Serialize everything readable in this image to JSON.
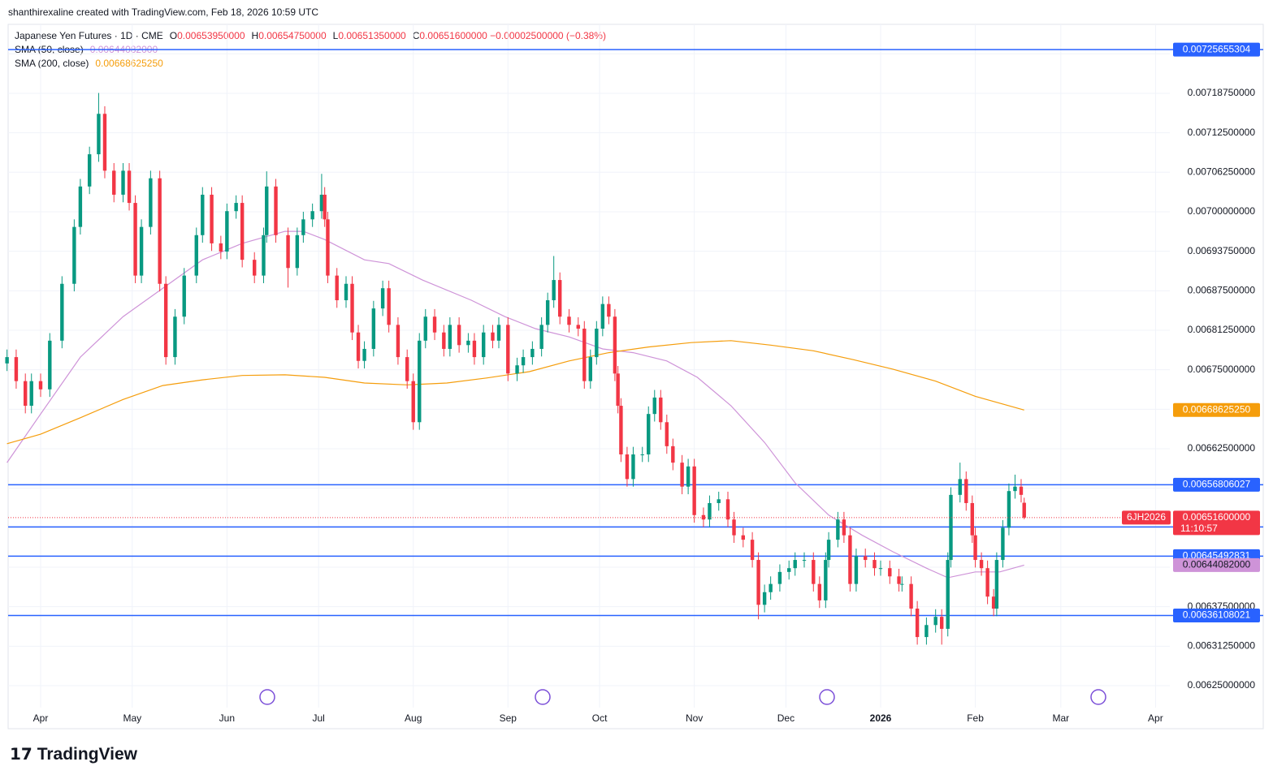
{
  "header": "shanthirexaline created with TradingView.com, Feb 18, 2026 10:59 UTC",
  "footer": "TradingView",
  "chart_data": {
    "type": "candlestick",
    "legend": {
      "title": "Japanese Yen Futures · 1D · CME",
      "items": [
        {
          "key": "O",
          "value": "0.00653950000"
        },
        {
          "key": "H",
          "value": "0.00654750000"
        },
        {
          "key": "L",
          "value": "0.00651350000"
        },
        {
          "key": "C",
          "value": "0.00651600000"
        }
      ],
      "change": "−0.00002500000 (−0.38%)"
    },
    "up_color": "#089981",
    "down_color": "#f23645",
    "xlim": [
      -10.64,
      369.68
    ],
    "ylim": [
      0.0062115,
      0.0072966
    ],
    "xticks": [
      {
        "value": 0,
        "label": "Apr"
      },
      {
        "value": 30,
        "label": "May"
      },
      {
        "value": 61,
        "label": "Jun"
      },
      {
        "value": 91,
        "label": "Jul"
      },
      {
        "value": 122,
        "label": "Aug"
      },
      {
        "value": 153,
        "label": "Sep"
      },
      {
        "value": 183,
        "label": "Oct"
      },
      {
        "value": 214,
        "label": "Nov"
      },
      {
        "value": 244,
        "label": "Dec"
      },
      {
        "value": 275,
        "label": "2026"
      },
      {
        "value": 306,
        "label": "Feb"
      },
      {
        "value": 334,
        "label": "Mar"
      },
      {
        "value": 365,
        "label": "Apr"
      }
    ],
    "yticks": [
      {
        "value": 0.00625,
        "label": "0.00625000000"
      },
      {
        "value": 0.0063125,
        "label": "0.00631250000"
      },
      {
        "value": 0.006375,
        "label": "0.00637500000"
      },
      {
        "value": 0.0064375,
        "label": "0.00643750000"
      },
      {
        "value": 0.0065,
        "label": "0.00650000000"
      },
      {
        "value": 0.0065625,
        "label": "0.00656250000"
      },
      {
        "value": 0.006625,
        "label": "0.00662500000"
      },
      {
        "value": 0.0066875,
        "label": "0.00668750000"
      },
      {
        "value": 0.00675,
        "label": "0.00675000000"
      },
      {
        "value": 0.0068125,
        "label": "0.00681250000"
      },
      {
        "value": 0.006875,
        "label": "0.00687500000"
      },
      {
        "value": 0.0069375,
        "label": "0.00693750000"
      },
      {
        "value": 0.007,
        "label": "0.00700000000"
      },
      {
        "value": 0.0070625,
        "label": "0.00706250000"
      },
      {
        "value": 0.007125,
        "label": "0.00712500000"
      },
      {
        "value": 0.0071875,
        "label": "0.00718750000"
      },
      {
        "value": 0.00725,
        "label": "0.00725000000"
      }
    ],
    "grid": true,
    "candles": [
      [
        -11,
        0.00676,
        0.006782,
        0.006748,
        0.00677
      ],
      [
        -8,
        0.00677,
        0.006782,
        0.00672,
        0.006732
      ],
      [
        -5,
        0.006732,
        0.006744,
        0.006681,
        0.006693
      ],
      [
        -3,
        0.006693,
        0.006744,
        0.006681,
        0.006732
      ],
      [
        0,
        0.006732,
        0.006744,
        0.006707,
        0.006719
      ],
      [
        3,
        0.006719,
        0.006808,
        0.006707,
        0.006796
      ],
      [
        7,
        0.006796,
        0.006898,
        0.006784,
        0.006886
      ],
      [
        11,
        0.006886,
        0.006988,
        0.006874,
        0.006976
      ],
      [
        13,
        0.006976,
        0.007052,
        0.006964,
        0.00704
      ],
      [
        16,
        0.00704,
        0.007103,
        0.007028,
        0.007091
      ],
      [
        19,
        0.007091,
        0.007188,
        0.007079,
        0.007155
      ],
      [
        21,
        0.007155,
        0.007167,
        0.007053,
        0.007065
      ],
      [
        24,
        0.007065,
        0.007077,
        0.007015,
        0.007027
      ],
      [
        27,
        0.007027,
        0.007077,
        0.007015,
        0.007065
      ],
      [
        29,
        0.007065,
        0.007077,
        0.007002,
        0.007014
      ],
      [
        31,
        0.007014,
        0.007026,
        0.006887,
        0.006899
      ],
      [
        33,
        0.006899,
        0.006988,
        0.006887,
        0.006976
      ],
      [
        36,
        0.006976,
        0.007065,
        0.006964,
        0.007053
      ],
      [
        39,
        0.007053,
        0.007065,
        0.006874,
        0.006886
      ],
      [
        41,
        0.006886,
        0.006898,
        0.006758,
        0.00677
      ],
      [
        44,
        0.00677,
        0.006846,
        0.006758,
        0.006834
      ],
      [
        47,
        0.006834,
        0.006911,
        0.006822,
        0.006899
      ],
      [
        51,
        0.006899,
        0.006975,
        0.006887,
        0.006963
      ],
      [
        53,
        0.006963,
        0.007039,
        0.006951,
        0.007027
      ],
      [
        56,
        0.007027,
        0.007039,
        0.006938,
        0.00695
      ],
      [
        59,
        0.00695,
        0.006962,
        0.006925,
        0.006937
      ],
      [
        61,
        0.006937,
        0.007013,
        0.006925,
        0.007001
      ],
      [
        64,
        0.007001,
        0.007026,
        0.006989,
        0.007014
      ],
      [
        66,
        0.007014,
        0.007026,
        0.006912,
        0.006924
      ],
      [
        70,
        0.006924,
        0.006936,
        0.006887,
        0.006899
      ],
      [
        73,
        0.006899,
        0.006975,
        0.006887,
        0.006963
      ],
      [
        74,
        0.006963,
        0.007064,
        0.006951,
        0.00704
      ],
      [
        77,
        0.00704,
        0.007052,
        0.006951,
        0.006963
      ],
      [
        81,
        0.006963,
        0.006975,
        0.00688,
        0.006911
      ],
      [
        84,
        0.006911,
        0.006975,
        0.006899,
        0.006963
      ],
      [
        86,
        0.006963,
        0.007,
        0.006951,
        0.006988
      ],
      [
        89,
        0.006988,
        0.007013,
        0.006976,
        0.007001
      ],
      [
        92,
        0.007001,
        0.00706,
        0.006989,
        0.007027
      ],
      [
        93,
        0.007027,
        0.007039,
        0.006976,
        0.006988
      ],
      [
        94,
        0.006988,
        0.007,
        0.006887,
        0.006899
      ],
      [
        97,
        0.006899,
        0.006911,
        0.006848,
        0.00686
      ],
      [
        100,
        0.00686,
        0.006898,
        0.006848,
        0.006886
      ],
      [
        102,
        0.006886,
        0.006898,
        0.006797,
        0.006809
      ],
      [
        104,
        0.006809,
        0.006821,
        0.006752,
        0.006764
      ],
      [
        106,
        0.006764,
        0.006795,
        0.006752,
        0.006783
      ],
      [
        109,
        0.006783,
        0.006859,
        0.006771,
        0.006847
      ],
      [
        112,
        0.006847,
        0.006891,
        0.006835,
        0.006879
      ],
      [
        114,
        0.006879,
        0.006891,
        0.006809,
        0.006821
      ],
      [
        117,
        0.006821,
        0.006833,
        0.006758,
        0.00677
      ],
      [
        120,
        0.00677,
        0.006782,
        0.00672,
        0.006732
      ],
      [
        122,
        0.006732,
        0.006744,
        0.006655,
        0.006667
      ],
      [
        124,
        0.006667,
        0.006808,
        0.006655,
        0.006796
      ],
      [
        126,
        0.006796,
        0.006846,
        0.006784,
        0.006834
      ],
      [
        129,
        0.006834,
        0.006846,
        0.006797,
        0.006809
      ],
      [
        132,
        0.006809,
        0.006821,
        0.006771,
        0.006783
      ],
      [
        134,
        0.006783,
        0.006833,
        0.006771,
        0.006821
      ],
      [
        137,
        0.006821,
        0.006833,
        0.006777,
        0.006789
      ],
      [
        140,
        0.006789,
        0.006808,
        0.006777,
        0.006796
      ],
      [
        142,
        0.006796,
        0.006808,
        0.006758,
        0.00677
      ],
      [
        145,
        0.00677,
        0.006821,
        0.006758,
        0.006809
      ],
      [
        148,
        0.006809,
        0.006821,
        0.006784,
        0.006796
      ],
      [
        150,
        0.006796,
        0.006833,
        0.006784,
        0.006821
      ],
      [
        153,
        0.006821,
        0.006833,
        0.006732,
        0.006744
      ],
      [
        156,
        0.006744,
        0.006769,
        0.006732,
        0.006757
      ],
      [
        158,
        0.006757,
        0.006782,
        0.006745,
        0.00677
      ],
      [
        161,
        0.00677,
        0.006795,
        0.006758,
        0.006783
      ],
      [
        164,
        0.006783,
        0.006833,
        0.006771,
        0.006821
      ],
      [
        166,
        0.006821,
        0.006872,
        0.006809,
        0.00686
      ],
      [
        168,
        0.00686,
        0.00693,
        0.006848,
        0.006892
      ],
      [
        170,
        0.006892,
        0.006904,
        0.006822,
        0.006834
      ],
      [
        173,
        0.006834,
        0.006846,
        0.006809,
        0.006821
      ],
      [
        176,
        0.006821,
        0.006833,
        0.006803,
        0.006815
      ],
      [
        178,
        0.006815,
        0.006827,
        0.00672,
        0.006732
      ],
      [
        180,
        0.006732,
        0.006782,
        0.00672,
        0.00677
      ],
      [
        182,
        0.00677,
        0.006827,
        0.006758,
        0.006815
      ],
      [
        184,
        0.006815,
        0.006866,
        0.006803,
        0.006854
      ],
      [
        186,
        0.006854,
        0.006866,
        0.006822,
        0.006834
      ],
      [
        188,
        0.006834,
        0.006846,
        0.006732,
        0.006744
      ],
      [
        189,
        0.006744,
        0.006756,
        0.006681,
        0.006693
      ],
      [
        190,
        0.006693,
        0.006705,
        0.006604,
        0.006616
      ],
      [
        192,
        0.006616,
        0.006628,
        0.006565,
        0.006577
      ],
      [
        194,
        0.006577,
        0.006628,
        0.006565,
        0.006616
      ],
      [
        197,
        0.006616,
        0.006628,
        0.006604,
        0.006616
      ],
      [
        199,
        0.006616,
        0.006692,
        0.006604,
        0.00668
      ],
      [
        201,
        0.00668,
        0.006718,
        0.006668,
        0.006706
      ],
      [
        203,
        0.006706,
        0.006718,
        0.006655,
        0.006667
      ],
      [
        205,
        0.006667,
        0.006679,
        0.006617,
        0.006629
      ],
      [
        207,
        0.006629,
        0.006641,
        0.006591,
        0.006603
      ],
      [
        210,
        0.006603,
        0.006615,
        0.006553,
        0.006565
      ],
      [
        212,
        0.006565,
        0.006609,
        0.006553,
        0.006597
      ],
      [
        214,
        0.006597,
        0.006609,
        0.006508,
        0.00652
      ],
      [
        217,
        0.00652,
        0.006532,
        0.006501,
        0.006513
      ],
      [
        219,
        0.006513,
        0.006551,
        0.006501,
        0.006539
      ],
      [
        222,
        0.006539,
        0.006557,
        0.006527,
        0.006545
      ],
      [
        225,
        0.006545,
        0.006557,
        0.006501,
        0.006513
      ],
      [
        227,
        0.006513,
        0.006525,
        0.006476,
        0.006488
      ],
      [
        230,
        0.006488,
        0.0065,
        0.006469,
        0.006481
      ],
      [
        233,
        0.006481,
        0.006493,
        0.006437,
        0.006449
      ],
      [
        235,
        0.006449,
        0.006461,
        0.006355,
        0.006378
      ],
      [
        237,
        0.006378,
        0.00641,
        0.006366,
        0.006398
      ],
      [
        239,
        0.006398,
        0.006423,
        0.006386,
        0.006411
      ],
      [
        242,
        0.006411,
        0.006442,
        0.006399,
        0.00643
      ],
      [
        245,
        0.00643,
        0.006448,
        0.006418,
        0.006436
      ],
      [
        247,
        0.006436,
        0.006461,
        0.006424,
        0.006449
      ],
      [
        250,
        0.006449,
        0.006461,
        0.006437,
        0.006449
      ],
      [
        253,
        0.006449,
        0.006461,
        0.006399,
        0.006411
      ],
      [
        255,
        0.006411,
        0.006423,
        0.006373,
        0.006385
      ],
      [
        257,
        0.006385,
        0.006461,
        0.006373,
        0.006449
      ],
      [
        258,
        0.006449,
        0.006493,
        0.006437,
        0.006481
      ],
      [
        261,
        0.006481,
        0.006525,
        0.006469,
        0.006513
      ],
      [
        263,
        0.006513,
        0.006525,
        0.006476,
        0.006488
      ],
      [
        265,
        0.006488,
        0.0065,
        0.006399,
        0.006411
      ],
      [
        267,
        0.006411,
        0.006467,
        0.006399,
        0.006455
      ],
      [
        270,
        0.006455,
        0.006467,
        0.006437,
        0.006449
      ],
      [
        273,
        0.006449,
        0.006461,
        0.006424,
        0.006436
      ],
      [
        275,
        0.006436,
        0.006448,
        0.006424,
        0.006436
      ],
      [
        278,
        0.006436,
        0.006448,
        0.006411,
        0.006423
      ],
      [
        281,
        0.006423,
        0.006435,
        0.006399,
        0.006411
      ],
      [
        282,
        0.006411,
        0.006423,
        0.006399,
        0.006411
      ],
      [
        285,
        0.006411,
        0.006423,
        0.00636,
        0.006372
      ],
      [
        287,
        0.006372,
        0.006384,
        0.006315,
        0.006327
      ],
      [
        290,
        0.006327,
        0.006358,
        0.006315,
        0.006346
      ],
      [
        293,
        0.006346,
        0.006371,
        0.006334,
        0.006359
      ],
      [
        295,
        0.006359,
        0.006371,
        0.006315,
        0.00634
      ],
      [
        297,
        0.00634,
        0.006461,
        0.006328,
        0.006449
      ],
      [
        298,
        0.006449,
        0.006564,
        0.006437,
        0.006552
      ],
      [
        301,
        0.006552,
        0.006603,
        0.00654,
        0.006577
      ],
      [
        303,
        0.006577,
        0.006589,
        0.006527,
        0.006539
      ],
      [
        305,
        0.006539,
        0.006551,
        0.006476,
        0.006488
      ],
      [
        306,
        0.006488,
        0.0065,
        0.006437,
        0.006449
      ],
      [
        308,
        0.006449,
        0.006461,
        0.006424,
        0.006436
      ],
      [
        310,
        0.006436,
        0.006448,
        0.006379,
        0.006391
      ],
      [
        312,
        0.006391,
        0.006403,
        0.00636,
        0.006372
      ],
      [
        313,
        0.006372,
        0.006461,
        0.00636,
        0.006449
      ],
      [
        315,
        0.006449,
        0.006512,
        0.006437,
        0.0065
      ],
      [
        317,
        0.0065,
        0.00657,
        0.006488,
        0.006558
      ],
      [
        319,
        0.006558,
        0.006584,
        0.006546,
        0.006565
      ],
      [
        321,
        0.006565,
        0.006577,
        0.00654,
        0.006552
      ],
      [
        322,
        0.0065395,
        0.0065475,
        0.0065135,
        0.006516
      ]
    ],
    "series": [
      {
        "name": "SMA (50, close)",
        "color": "#ce93d8",
        "last_label": "0.00644082000",
        "x": [
          -11,
          0,
          13,
          27,
          40,
          53,
          66,
          80,
          86,
          93,
          106,
          114,
          125,
          141,
          152,
          162,
          173,
          184,
          194,
          205,
          215,
          226,
          237,
          247,
          258,
          269,
          279,
          290,
          297,
          306,
          314,
          322
        ],
        "values": [
          0.006603,
          0.00668,
          0.00677,
          0.006834,
          0.006879,
          0.006924,
          0.00695,
          0.006969,
          0.006969,
          0.006956,
          0.006924,
          0.006918,
          0.006892,
          0.00686,
          0.006834,
          0.006815,
          0.006802,
          0.006783,
          0.006777,
          0.006764,
          0.006738,
          0.006693,
          0.006635,
          0.006571,
          0.00652,
          0.006488,
          0.006462,
          0.006436,
          0.006421,
          0.00643,
          0.00643,
          0.00644082
        ]
      },
      {
        "name": "SMA (200, close)",
        "color": "#f59d0b",
        "last_label": "0.00668625250",
        "x": [
          -11,
          0,
          13,
          27,
          40,
          53,
          66,
          80,
          93,
          106,
          120,
          133,
          146,
          160,
          173,
          186,
          199,
          213,
          226,
          239,
          253,
          266,
          279,
          293,
          306,
          322
        ],
        "values": [
          0.006633,
          0.006648,
          0.006674,
          0.006703,
          0.006725,
          0.006734,
          0.006741,
          0.006742,
          0.006738,
          0.006729,
          0.006726,
          0.006729,
          0.006737,
          0.006747,
          0.006764,
          0.006777,
          0.006786,
          0.006793,
          0.006796,
          0.006789,
          0.00678,
          0.006766,
          0.006751,
          0.006732,
          0.006708,
          0.0066862525
        ]
      }
    ],
    "hlines": [
      0.00725655304,
      0.00656806027,
      0.00650120957,
      0.00645492831,
      0.00636108021
    ],
    "hline_color": "#2962ff",
    "last_price": {
      "value": 0.006516,
      "symbol": "6JH2026",
      "label": "0.00651600000",
      "countdown": "11:10:57"
    }
  }
}
